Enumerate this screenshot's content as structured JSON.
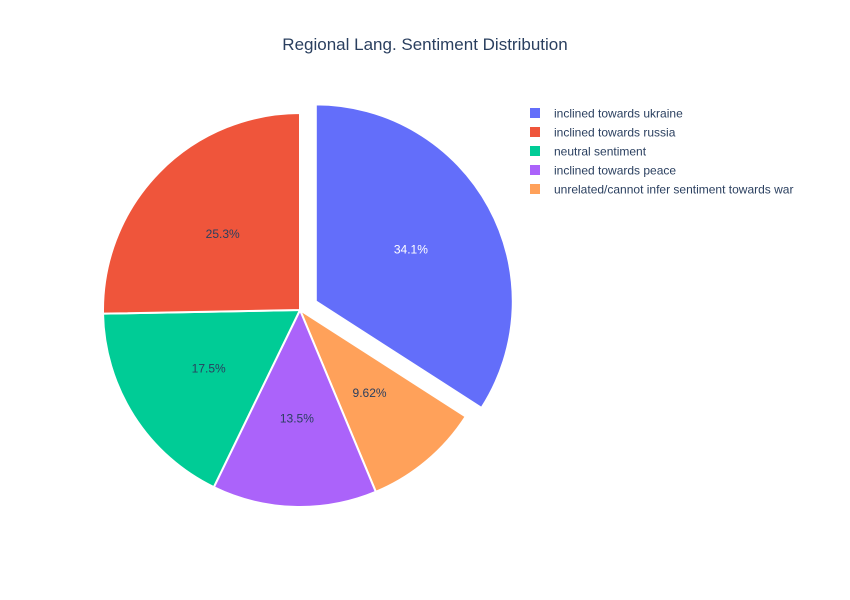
{
  "chart_data": {
    "type": "pie",
    "title": "Regional Lang. Sentiment Distribution",
    "slices": [
      {
        "label": "inclined towards ukraine",
        "value": 34.1,
        "text": "34.1%",
        "color": "#636efa",
        "text_color": "#ffffff",
        "pulled": true
      },
      {
        "label": "unrelated/cannot infer sentiment towards war",
        "value": 9.62,
        "text": "9.62%",
        "color": "#ffa15a",
        "text_color": "#2a3f5f",
        "pulled": false
      },
      {
        "label": "inclined towards peace",
        "value": 13.5,
        "text": "13.5%",
        "color": "#ab63fa",
        "text_color": "#2a3f5f",
        "pulled": false
      },
      {
        "label": "neutral sentiment",
        "value": 17.5,
        "text": "17.5%",
        "color": "#00cc96",
        "text_color": "#2a3f5f",
        "pulled": false
      },
      {
        "label": "inclined towards russia",
        "value": 25.3,
        "text": "25.3%",
        "color": "#ef553b",
        "text_color": "#2a3f5f",
        "pulled": false
      }
    ],
    "legend": {
      "placement": "top-right",
      "order": [
        "inclined towards ukraine",
        "inclined towards russia",
        "neutral sentiment",
        "inclined towards peace",
        "unrelated/cannot infer sentiment towards war"
      ]
    },
    "direction": "clockwise",
    "start_angle": "12 o'clock"
  }
}
